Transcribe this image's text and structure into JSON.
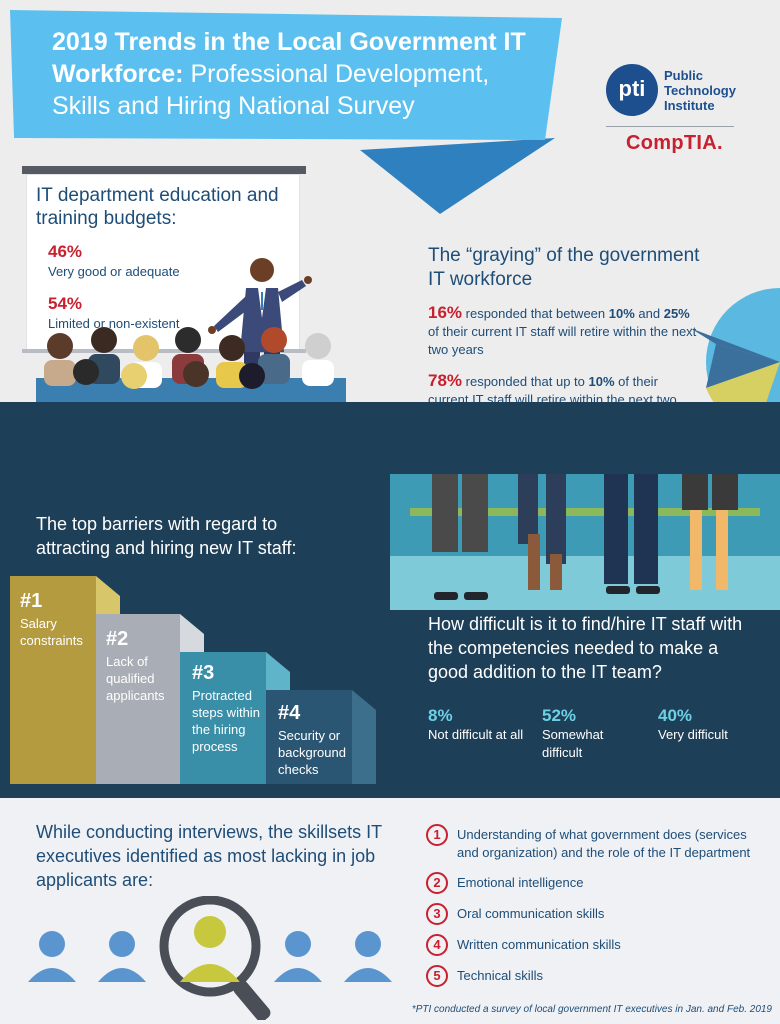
{
  "header": {
    "title_bold": "2019 Trends in the Local Government IT Workforce:",
    "title_light": "Professional Development, Skills and Hiring National Survey"
  },
  "logos": {
    "pti_abbr": "pti",
    "pti_line1": "Public",
    "pti_line2": "Technology",
    "pti_line3": "Institute",
    "comptia": "CompTIA."
  },
  "education": {
    "title": "IT department education and training budgets:",
    "stats": [
      {
        "value": "46%",
        "label": "Very good or adequate"
      },
      {
        "value": "54%",
        "label": "Limited or non-existent"
      }
    ]
  },
  "graying": {
    "title": "The “graying” of the government IT workforce",
    "stat1_pct": "16%",
    "stat1_a": " responded that between ",
    "stat1_b": "10%",
    "stat1_c": " and ",
    "stat1_d": "25%",
    "stat1_e": " of their current IT staff will retire within the next two years",
    "stat2_pct": "78%",
    "stat2_a": " responded that up to ",
    "stat2_b": "10%",
    "stat2_c": " of their current IT staff will retire within the next two years"
  },
  "barriers": {
    "title": "The top barriers with regard to attracting and hiring new IT staff:",
    "items": [
      {
        "num": "#1",
        "text": "Salary constraints"
      },
      {
        "num": "#2",
        "text": "Lack of qualified applicants"
      },
      {
        "num": "#3",
        "text": "Protracted steps within the hiring process"
      },
      {
        "num": "#4",
        "text": "Security or background checks"
      }
    ]
  },
  "hiring": {
    "title": "How difficult is it to find/hire IT staff with the competencies needed to make a good addition to the IT team?",
    "stats": [
      {
        "value": "8%",
        "label": "Not difficult at all"
      },
      {
        "value": "52%",
        "label": "Somewhat difficult"
      },
      {
        "value": "40%",
        "label": "Very difficult"
      }
    ]
  },
  "skills": {
    "title": "While conducting interviews, the skillsets IT executives identified as most lacking in job applicants are:",
    "items": [
      {
        "num": "1",
        "text": "Understanding of what government does (services and organization) and the role of the IT department"
      },
      {
        "num": "2",
        "text": "Emotional intelligence"
      },
      {
        "num": "3",
        "text": "Oral communication skills"
      },
      {
        "num": "4",
        "text": "Written communication skills"
      },
      {
        "num": "5",
        "text": "Technical skills"
      }
    ]
  },
  "footnote": "*PTI conducted a survey of local government IT executives in Jan. and Feb. 2019",
  "colors": {
    "banner": "#5bc0ef",
    "banner_dark": "#2f80bf",
    "navy": "#1e4d78",
    "red": "#c8202f",
    "dark_band": "#1e3f58",
    "step1": "#b59b3f",
    "step2": "#a9adb5",
    "step3": "#3a8fa8",
    "step4": "#2b5673"
  }
}
